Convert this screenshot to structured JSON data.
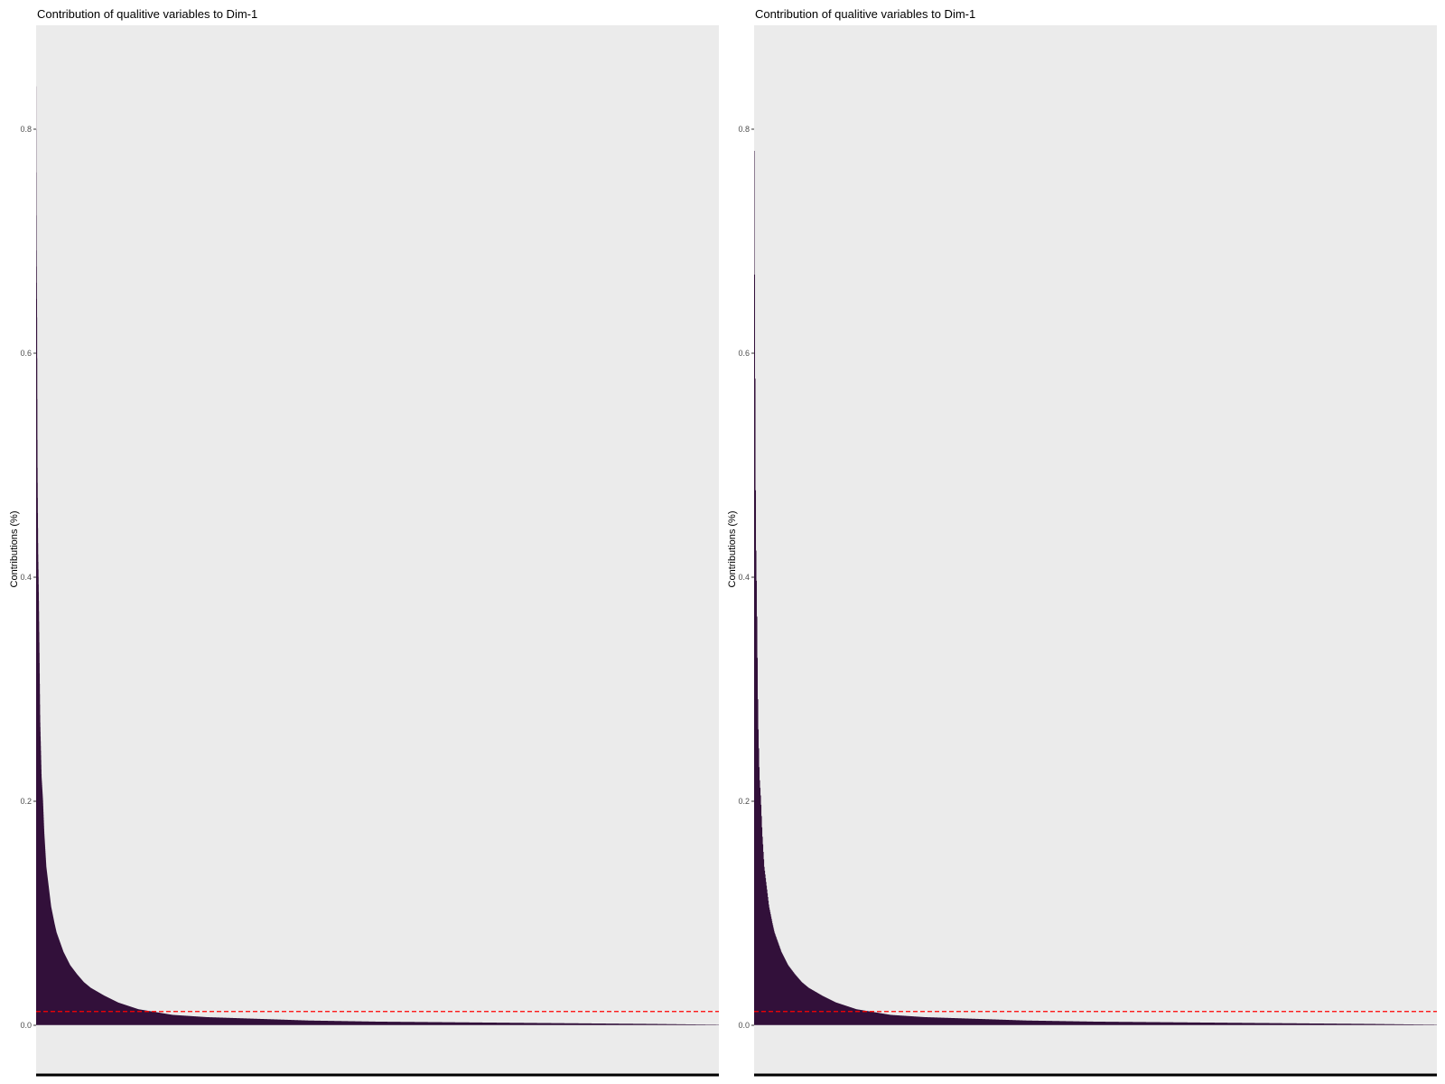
{
  "colors": {
    "panel_background": "#EBEBEB",
    "bar_fill": "#32103A",
    "reference_line": "#FF0000",
    "axis_line": "#000000",
    "tick_text": "#4D4D4D"
  },
  "chart_data": [
    {
      "type": "bar",
      "title": "Contribution of qualitive variables to Dim-1",
      "xlabel": "",
      "ylabel": "Contributions (%)",
      "y_ticks": [
        "0.0",
        "0.2",
        "0.4",
        "0.6",
        "0.8"
      ],
      "ylim": [
        -0.045,
        0.885
      ],
      "n_bars": 6000,
      "reference_line": 0.012,
      "grid": false,
      "sorted_profile": {
        "fraction_of_bars": [
          0,
          0.0007,
          0.0014,
          0.002,
          0.003,
          0.004,
          0.006,
          0.008,
          0.01,
          0.012,
          0.015,
          0.018,
          0.022,
          0.027,
          0.03,
          0.04,
          0.05,
          0.06,
          0.07,
          0.08,
          0.1,
          0.12,
          0.15,
          0.2,
          0.25,
          0.3,
          0.35,
          0.4,
          0.5,
          0.6,
          0.7,
          0.8,
          0.9,
          0.97,
          1.0
        ],
        "values": [
          0.85,
          0.69,
          0.63,
          0.5,
          0.42,
          0.38,
          0.27,
          0.22,
          0.2,
          0.17,
          0.14,
          0.125,
          0.105,
          0.09,
          0.082,
          0.065,
          0.053,
          0.045,
          0.038,
          0.033,
          0.026,
          0.02,
          0.014,
          0.009,
          0.007,
          0.006,
          0.005,
          0.004,
          0.003,
          0.0025,
          0.002,
          0.0015,
          0.001,
          0.0005,
          0.0003
        ]
      }
    },
    {
      "type": "bar",
      "title": "Contribution of qualitive variables to Dim-1",
      "xlabel": "",
      "ylabel": "Contributions (%)",
      "y_ticks": [
        "0.0",
        "0.2",
        "0.4",
        "0.6",
        "0.8"
      ],
      "ylim": [
        -0.045,
        0.885
      ],
      "n_bars": 1500,
      "reference_line": 0.012,
      "grid": false,
      "sorted_profile": {
        "fraction_of_bars": [
          0,
          0.0007,
          0.0014,
          0.002,
          0.003,
          0.004,
          0.006,
          0.008,
          0.01,
          0.012,
          0.015,
          0.018,
          0.022,
          0.027,
          0.03,
          0.04,
          0.05,
          0.06,
          0.07,
          0.08,
          0.1,
          0.12,
          0.15,
          0.2,
          0.25,
          0.3,
          0.35,
          0.4,
          0.5,
          0.6,
          0.7,
          0.8,
          0.9,
          0.97,
          1.0
        ],
        "values": [
          0.85,
          0.69,
          0.63,
          0.5,
          0.42,
          0.38,
          0.27,
          0.22,
          0.2,
          0.17,
          0.14,
          0.125,
          0.105,
          0.09,
          0.082,
          0.065,
          0.053,
          0.045,
          0.038,
          0.033,
          0.026,
          0.02,
          0.014,
          0.009,
          0.007,
          0.006,
          0.005,
          0.004,
          0.003,
          0.0025,
          0.002,
          0.0015,
          0.001,
          0.0005,
          0.0003
        ]
      }
    }
  ]
}
